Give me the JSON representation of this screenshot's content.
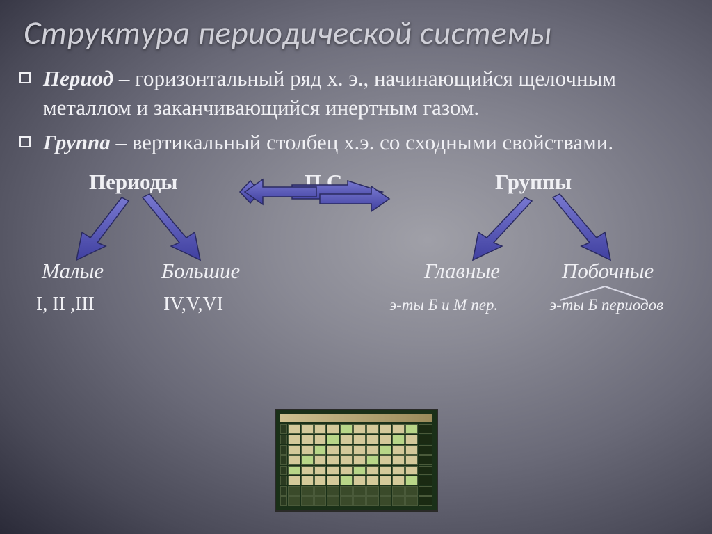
{
  "title": "Структура периодической системы",
  "definitions": [
    {
      "term": "Период",
      "text": " – горизонтальный ряд х. э., начинающийся щелочным металлом и заканчивающийся инертным газом."
    },
    {
      "term": "Группа",
      "text": " – вертикальный столбец х.э. со сходными свойствами."
    }
  ],
  "diagram": {
    "top_left": "Периоды",
    "top_mid": "П.С.",
    "top_right": "Группы",
    "left_a": "Малые",
    "left_b": "Большие",
    "right_a": "Главные",
    "right_b": "Побочные",
    "sub_left_a": "I, II ,III",
    "sub_left_b": "IV,V,VI",
    "sub_right_a": "э-ты Б и М пер.",
    "sub_right_b": "э-ты Б периодов",
    "arrow_fill": "#5a5ab8",
    "arrow_stroke": "#2a2a60"
  },
  "ptable": {
    "bg": "#1a3018",
    "cell": "#d4c99a",
    "highlight": "#b8d688"
  }
}
